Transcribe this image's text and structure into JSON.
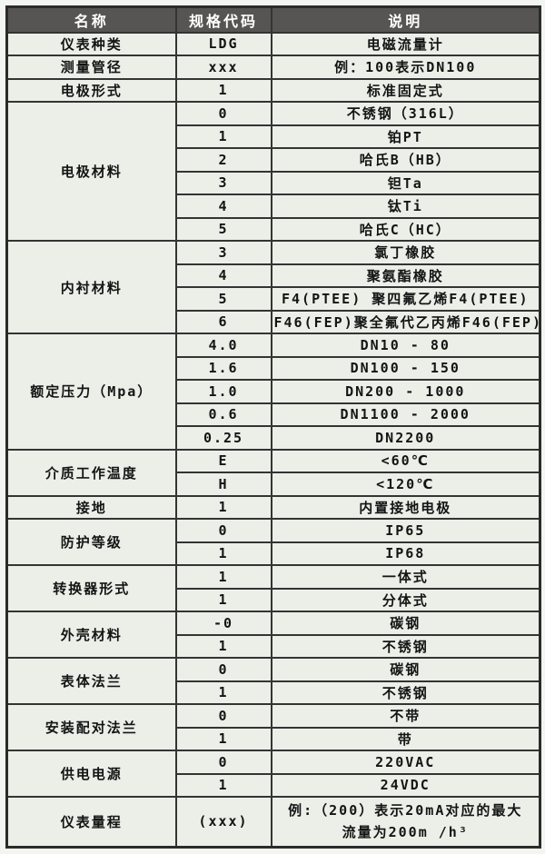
{
  "table": {
    "headers": [
      {
        "label": "名称"
      },
      {
        "label": "规格代码"
      },
      {
        "label": "说明"
      }
    ],
    "groups": [
      {
        "name": "仪表种类",
        "rows": [
          {
            "code": "LDG",
            "desc": "电磁流量计"
          }
        ]
      },
      {
        "name": "测量管径",
        "rows": [
          {
            "code": "xxx",
            "desc": "例：100表示DN100"
          }
        ]
      },
      {
        "name": "电极形式",
        "rows": [
          {
            "code": "1",
            "desc": "标准固定式"
          }
        ]
      },
      {
        "name": "电极材料",
        "rows": [
          {
            "code": "0",
            "desc": "不锈钢（316L）"
          },
          {
            "code": "1",
            "desc": "铂PT"
          },
          {
            "code": "2",
            "desc": "哈氏B（HB）"
          },
          {
            "code": "3",
            "desc": "钽Ta"
          },
          {
            "code": "4",
            "desc": "钛Ti"
          },
          {
            "code": "5",
            "desc": "哈氏C（HC）"
          }
        ]
      },
      {
        "name": "内衬材料",
        "rows": [
          {
            "code": "3",
            "desc": "氯丁橡胶"
          },
          {
            "code": "4",
            "desc": "聚氨酯橡胶"
          },
          {
            "code": "5",
            "desc": "F4(PTEE) 聚四氟乙烯F4(PTEE)"
          },
          {
            "code": "6",
            "desc": "F46(FEP)聚全氟代乙丙烯F46(FEP)"
          }
        ]
      },
      {
        "name": "额定压力（Mpa）",
        "rows": [
          {
            "code": "4.0",
            "desc": "DN10 - 80"
          },
          {
            "code": "1.6",
            "desc": "DN100 - 150"
          },
          {
            "code": "1.0",
            "desc": "DN200 - 1000"
          },
          {
            "code": "0.6",
            "desc": "DN1100 - 2000"
          },
          {
            "code": "0.25",
            "desc": "DN2200"
          }
        ]
      },
      {
        "name": "介质工作温度",
        "rows": [
          {
            "code": "E",
            "desc": "<60℃"
          },
          {
            "code": "H",
            "desc": "<120℃"
          }
        ]
      },
      {
        "name": "接地",
        "rows": [
          {
            "code": "1",
            "desc": "内置接地电极"
          }
        ]
      },
      {
        "name": "防护等级",
        "rows": [
          {
            "code": "0",
            "desc": "IP65"
          },
          {
            "code": "1",
            "desc": "IP68"
          }
        ]
      },
      {
        "name": "转换器形式",
        "rows": [
          {
            "code": "1",
            "desc": "一体式"
          },
          {
            "code": "1",
            "desc": "分体式"
          }
        ]
      },
      {
        "name": "外壳材料",
        "rows": [
          {
            "code": "-0",
            "desc": "碳钢"
          },
          {
            "code": "1",
            "desc": "不锈钢"
          }
        ]
      },
      {
        "name": "表体法兰",
        "rows": [
          {
            "code": "0",
            "desc": "碳钢"
          },
          {
            "code": "1",
            "desc": "不锈钢"
          }
        ]
      },
      {
        "name": "安装配对法兰",
        "rows": [
          {
            "code": "0",
            "desc": "不带"
          },
          {
            "code": "1",
            "desc": "带"
          }
        ]
      },
      {
        "name": "供电电源",
        "rows": [
          {
            "code": "0",
            "desc": "220VAC"
          },
          {
            "code": "1",
            "desc": "24VDC"
          }
        ]
      },
      {
        "name": "仪表量程",
        "rows": [
          {
            "code": "(xxx)",
            "desc_line1": "例:（200）表示20mA对应的最大",
            "desc_line2": "流量为200m /h³"
          }
        ]
      }
    ],
    "colors": {
      "header_bg": "#575553",
      "header_text": "#ffffff",
      "cell_bg": "#ebefe8",
      "border": "#343434",
      "text": "#141414",
      "page_bg": "#f3f5f0"
    }
  }
}
